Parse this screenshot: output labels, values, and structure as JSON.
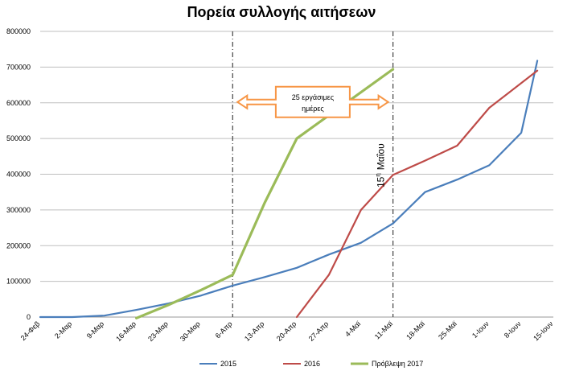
{
  "chart_data": {
    "type": "line",
    "title": "Πορεία συλλογής αιτήσεων",
    "xlabel": "",
    "ylabel": "",
    "ylim": [
      0,
      800000
    ],
    "yticks": [
      "0",
      "100000",
      "200000",
      "300000",
      "400000",
      "500000",
      "600000",
      "700000",
      "800000"
    ],
    "grid": "horizontal",
    "legend_position": "bottom",
    "categories": [
      "24-Φεβ",
      "2-Μαρ",
      "9-Μαρ",
      "16-Μαρ",
      "23-Μαρ",
      "30-Μαρ",
      "6-Απρ",
      "13-Απρ",
      "20-Απρ",
      "27-Απρ",
      "4-Μαϊ",
      "11-Μαϊ",
      "18-Μαϊ",
      "25-Μαϊ",
      "1-Ιουν",
      "8-Ιουν",
      "15-Ιουν"
    ],
    "series": [
      {
        "name": "2015",
        "color": "#4A7EBB",
        "points": [
          [
            0,
            0
          ],
          [
            1,
            0
          ],
          [
            2,
            4000
          ],
          [
            3,
            20000
          ],
          [
            4,
            38000
          ],
          [
            5,
            60000
          ],
          [
            6,
            88000
          ],
          [
            7,
            112000
          ],
          [
            8,
            138000
          ],
          [
            9,
            175000
          ],
          [
            10,
            208000
          ],
          [
            11,
            262000
          ],
          [
            12,
            350000
          ],
          [
            13,
            385000
          ],
          [
            14,
            425000
          ],
          [
            15,
            516000
          ],
          [
            15.5,
            718000
          ]
        ]
      },
      {
        "name": "2016",
        "color": "#BE4B48",
        "points": [
          [
            8,
            0
          ],
          [
            9,
            118000
          ],
          [
            10,
            300000
          ],
          [
            11,
            398000
          ],
          [
            12,
            438000
          ],
          [
            13,
            480000
          ],
          [
            14,
            586000
          ],
          [
            15.5,
            690000
          ]
        ]
      },
      {
        "name": "Πρόβλεψη 2017",
        "color": "#9BBB59",
        "points": [
          [
            3,
            -3000
          ],
          [
            4,
            34000
          ],
          [
            5,
            75000
          ],
          [
            6,
            118000
          ],
          [
            7,
            320000
          ],
          [
            8,
            500000
          ],
          [
            11,
            694000
          ]
        ]
      }
    ],
    "annotations": {
      "vline_1_x": 6,
      "vline_2_x": 11,
      "arrow_text_line1": "25 εργάσιμες",
      "arrow_text_line2": "ημέρες",
      "arrow_from_x": 6,
      "arrow_to_x": 11,
      "arrow_y": 600000,
      "vertical_label_main": "15",
      "vertical_label_sup": "η",
      "vertical_label_rest": "Μαΐου",
      "arrow_color": "#F79646"
    }
  }
}
